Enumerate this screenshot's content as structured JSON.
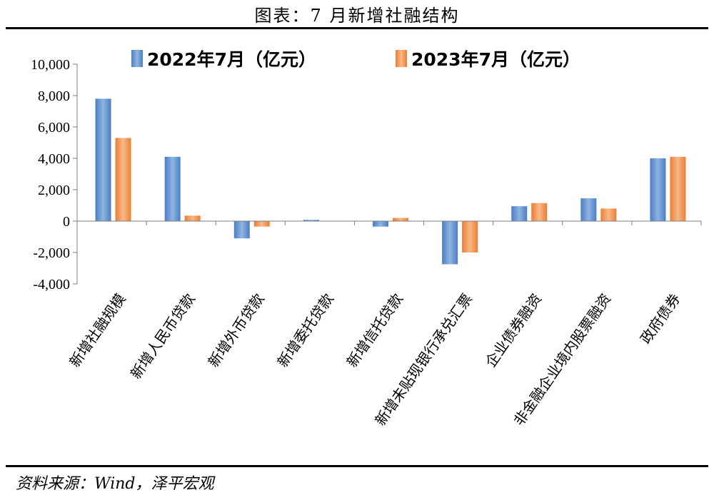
{
  "title": "图表：7 月新增社融结构",
  "source": "资料来源：Wind，泽平宏观",
  "colors": {
    "series_2022": "#4A7EC2",
    "series_2022_light": "#8FB4E3",
    "series_2023": "#ED7D31",
    "series_2023_light": "#F7B98A"
  },
  "chart_data": {
    "type": "bar",
    "title": "",
    "xlabel": "",
    "ylabel": "",
    "ylim": [
      -4000,
      10000
    ],
    "yticks": [
      10000,
      8000,
      6000,
      4000,
      2000,
      0,
      -2000,
      -4000
    ],
    "ytick_labels": [
      "10,000",
      "8,000",
      "6,000",
      "4,000",
      "2,000",
      "0",
      "-2,000",
      "-4,000"
    ],
    "categories": [
      "新增社融规模",
      "新增人民币贷款",
      "新增外币贷款",
      "新增委托贷款",
      "新增信托贷款",
      "新增未贴现银行承兑汇票",
      "企业债券融资",
      "非金融企业境内股票融资",
      "政府债券"
    ],
    "series": [
      {
        "name": "2022年7月（亿元）",
        "values": [
          7800,
          4100,
          -1100,
          80,
          -350,
          -2750,
          950,
          1450,
          4000
        ]
      },
      {
        "name": "2023年7月（亿元）",
        "values": [
          5300,
          350,
          -350,
          0,
          200,
          -2000,
          1150,
          800,
          4100
        ]
      }
    ],
    "legend_position": "top",
    "grid": false
  }
}
